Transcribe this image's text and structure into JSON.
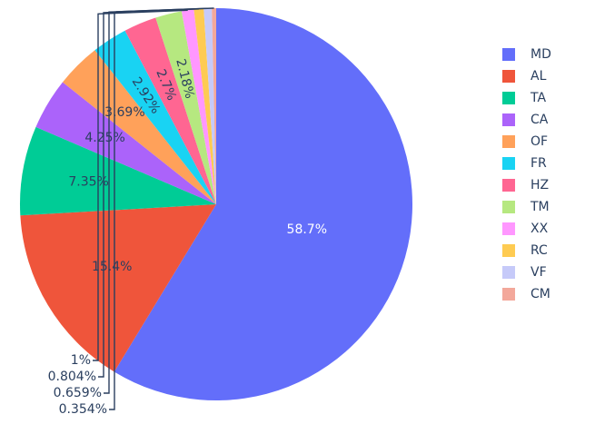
{
  "chart_data": {
    "type": "pie",
    "categories": [
      "MD",
      "AL",
      "TA",
      "CA",
      "OF",
      "FR",
      "HZ",
      "TM",
      "XX",
      "RC",
      "VF",
      "CM"
    ],
    "values": [
      58.7,
      15.4,
      7.35,
      4.25,
      3.69,
      2.92,
      2.7,
      2.18,
      1,
      0.804,
      0.659,
      0.354
    ],
    "labels": [
      "58.7%",
      "15.4%",
      "7.35%",
      "4.25%",
      "3.69%",
      "2.92%",
      "2.7%",
      "2.18%",
      "1%",
      "0.804%",
      "0.659%",
      "0.354%"
    ],
    "colors": [
      "#636efa",
      "#EF553B",
      "#00cc96",
      "#ab63fa",
      "#FFA15A",
      "#19d3f3",
      "#FF6692",
      "#B6E880",
      "#FF97FF",
      "#FECB52",
      "#c6caf9",
      "#f3a89b"
    ],
    "label_colors": [
      "#ffffff",
      "#2a3f5f",
      "#2a3f5f",
      "#2a3f5f",
      "#2a3f5f",
      "#2a3f5f",
      "#2a3f5f",
      "#2a3f5f",
      "#2a3f5f",
      "#2a3f5f",
      "#2a3f5f",
      "#2a3f5f"
    ],
    "direction": "clockwise",
    "start_angle": "top",
    "legend_position": "right"
  }
}
